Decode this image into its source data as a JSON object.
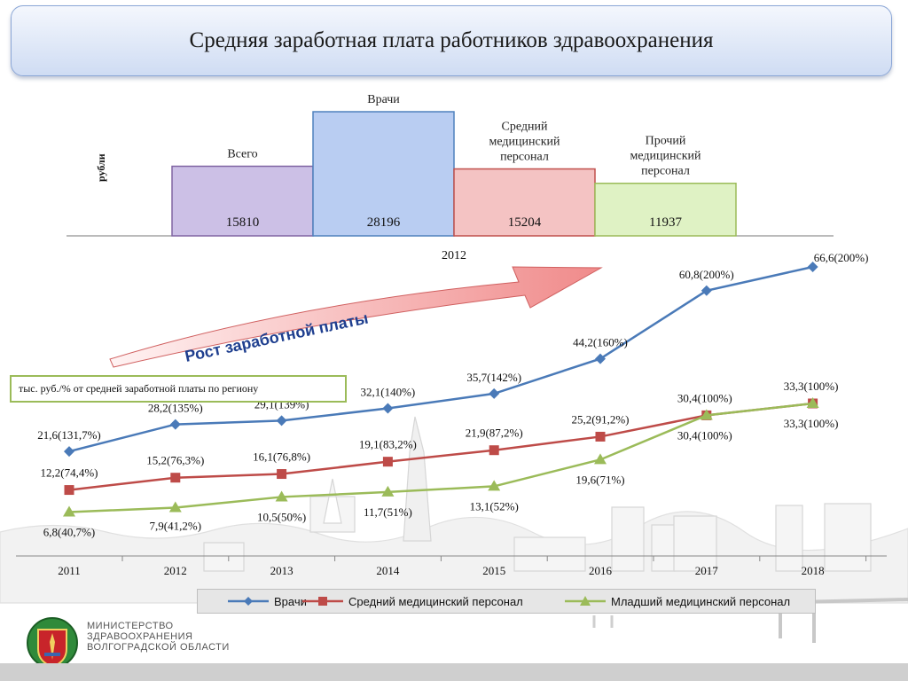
{
  "title": "Средняя заработная плата работников здравоохранения",
  "chart_data": [
    {
      "type": "bar",
      "ylabel": "рубли",
      "xlabel": "2012",
      "categories": [
        "Всего",
        "Врачи",
        "Средний медицинский персонал",
        "Прочий медицинский персонал"
      ],
      "values": [
        15810,
        28196,
        15204,
        11937
      ],
      "value_labels": [
        "15810",
        "28196",
        "15204",
        "11937"
      ],
      "colors": [
        "#ccc0e6",
        "#b9cdf2",
        "#f4c3c3",
        "#dff2c4"
      ],
      "border_colors": [
        "#8064a2",
        "#4f81bd",
        "#c0504d",
        "#9bbb59"
      ]
    },
    {
      "type": "line",
      "x": [
        "2011",
        "2012",
        "2013",
        "2014",
        "2015",
        "2016",
        "2017",
        "2018"
      ],
      "series": [
        {
          "name": "Врачи",
          "color": "#4a7ab8",
          "marker": "diamond",
          "values": [
            21.6,
            28.2,
            29.1,
            32.1,
            35.7,
            44.2,
            60.8,
            66.6
          ],
          "labels": [
            "21,6(131,7%)",
            "28,2(135%)",
            "29,1(139%)",
            "32,1(140%)",
            "35,7(142%)",
            "44,2(160%)",
            "60,8(200%)",
            "66,6(200%)"
          ]
        },
        {
          "name": "Средний медицинский персонал",
          "color": "#be4b48",
          "marker": "square",
          "values": [
            12.2,
            15.2,
            16.1,
            19.1,
            21.9,
            25.2,
            30.4,
            33.3
          ],
          "labels": [
            "12,2(74,4%)",
            "15,2(76,3%)",
            "16,1(76,8%)",
            "19,1(83,2%)",
            "21,9(87,2%)",
            "25,2(91,2%)",
            "30,4(100%)",
            "33,3(100%)"
          ]
        },
        {
          "name": "Младший медицинский персонал",
          "color": "#9bbb59",
          "marker": "triangle",
          "values": [
            6.8,
            7.9,
            10.5,
            11.7,
            13.1,
            19.6,
            30.4,
            33.3
          ],
          "labels": [
            "6,8(40,7%)",
            "7,9(41,2%)",
            "10,5(50%)",
            "11,7(51%)",
            "13,1(52%)",
            "19,6(71%)",
            "30,4(100%)",
            "33,3(100%)"
          ]
        }
      ],
      "note": "тыс. руб./% от средней заработной платы по региону",
      "arrow_label": "Рост заработной платы"
    }
  ],
  "footer": {
    "ministry_lines": [
      "МИНИСТЕРСТВО",
      "ЗДРАВООХРАНЕНИЯ",
      "ВОЛГОГРАДСКОЙ ОБЛАСТИ"
    ]
  }
}
